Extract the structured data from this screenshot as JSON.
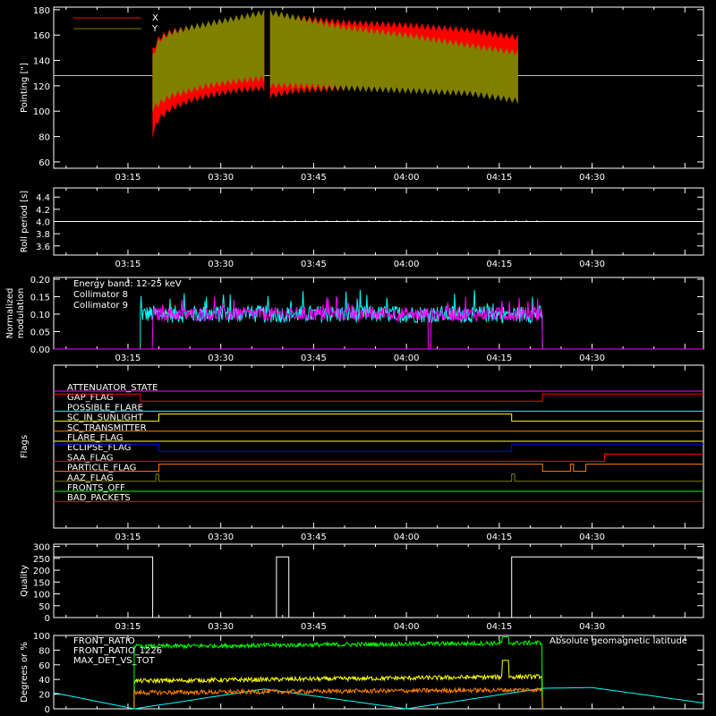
{
  "time_axis": {
    "tick_labels": [
      "03:15",
      "03:30",
      "03:45",
      "04:00",
      "04:15",
      "04:30"
    ],
    "tick_minutes": [
      195,
      210,
      225,
      240,
      255,
      270
    ],
    "range_minutes": [
      183,
      288
    ]
  },
  "colors": {
    "white": "#ffffff",
    "red": "#ff0000",
    "olive": "#808000",
    "cyan": "#00ffff",
    "magenta": "#ff00ff",
    "yellow": "#ffff00",
    "green": "#00ff00",
    "orange": "#ff8000",
    "blue": "#0000ff",
    "gray": "#c0c0c0"
  },
  "chart_data": [
    {
      "type": "area",
      "ylabel": "Pointing [\"]",
      "ylim": [
        55,
        182
      ],
      "yticks": [
        60,
        80,
        100,
        120,
        140,
        160,
        180
      ],
      "reference_line": 128,
      "legend": [
        "X",
        "Y"
      ],
      "series": [
        {
          "name": "X",
          "color": "#ff0000",
          "segments": [
            {
              "start": 199,
              "end": 217,
              "x": [
                199,
                200,
                202,
                205,
                208,
                212,
                217
              ],
              "upper": [
                150,
                160,
                165,
                168,
                170,
                172,
                174
              ],
              "lower": [
                80,
                92,
                100,
                106,
                110,
                114,
                116
              ]
            },
            {
              "start": 218,
              "end": 258,
              "x": [
                218,
                222,
                230,
                240,
                250,
                258
              ],
              "upper": [
                178,
                176,
                172,
                170,
                166,
                160
              ],
              "lower": [
                110,
                114,
                116,
                115,
                112,
                108
              ]
            }
          ]
        },
        {
          "name": "Y",
          "color": "#808000",
          "segments": [
            {
              "start": 199,
              "end": 217,
              "x": [
                199,
                200,
                202,
                205,
                208,
                212,
                217
              ],
              "upper": [
                145,
                158,
                164,
                168,
                171,
                175,
                180
              ],
              "lower": [
                100,
                104,
                110,
                114,
                118,
                121,
                124
              ]
            },
            {
              "start": 218,
              "end": 258,
              "x": [
                218,
                222,
                230,
                240,
                250,
                258
              ],
              "upper": [
                180,
                176,
                168,
                162,
                154,
                148
              ],
              "lower": [
                118,
                118,
                116,
                114,
                112,
                106
              ]
            }
          ]
        }
      ]
    },
    {
      "type": "line",
      "ylabel": "Roll period [s]",
      "ylim": [
        3.45,
        4.55
      ],
      "yticks": [
        3.6,
        3.8,
        4.0,
        4.2,
        4.4
      ],
      "yticklabels": [
        "3.6",
        "3.8",
        "4.0",
        "4.2",
        "4.4"
      ],
      "series": [
        {
          "name": "roll",
          "color": "#ffffff",
          "x": [
            183,
            288
          ],
          "y": [
            4.0,
            4.0
          ]
        }
      ]
    },
    {
      "type": "line",
      "ylabel": "Normalized modulation",
      "ylim": [
        0,
        0.205
      ],
      "yticks": [
        0,
        0.05,
        0.1,
        0.15,
        0.2
      ],
      "yticklabels": [
        "0.00",
        "0.05",
        "0.10",
        "0.15",
        "0.20"
      ],
      "annotations": [
        "Energy band: 12-25 keV",
        "Collimator 8",
        "Collimator 9"
      ],
      "series": [
        {
          "name": "Collimator 8",
          "color": "#00ffff",
          "start": 197,
          "end": 262,
          "mean": 0.1,
          "spread": 0.025
        },
        {
          "name": "Collimator 9",
          "color": "#ff00ff",
          "start": 197,
          "end": 262,
          "mean": 0.1,
          "spread": 0.02,
          "dropouts": [
            [
              197,
              199
            ],
            [
              243.5,
              244
            ]
          ]
        }
      ]
    },
    {
      "type": "table",
      "ylabel": "Flags",
      "flags": [
        {
          "label": "ATTENUATOR_STATE",
          "color": "#ff00ff",
          "steps": [
            [
              183,
              0
            ]
          ]
        },
        {
          "label": "GAP_FLAG",
          "color": "#ff0000",
          "steps": [
            [
              183,
              1
            ],
            [
              197,
              0
            ],
            [
              262,
              1
            ]
          ]
        },
        {
          "label": "POSSIBLE_FLARE",
          "color": "#00ffff",
          "steps": [
            [
              183,
              0
            ]
          ]
        },
        {
          "label": "SC_IN_SUNLIGHT",
          "color": "#ffff00",
          "steps": [
            [
              183,
              0
            ],
            [
              200,
              1
            ],
            [
              257,
              0
            ]
          ]
        },
        {
          "label": "SC_TRANSMITTER",
          "color": "#ff8000",
          "steps": [
            [
              183,
              0
            ]
          ]
        },
        {
          "label": "FLARE_FLAG",
          "color": "#ffff00",
          "steps": [
            [
              183,
              0
            ]
          ]
        },
        {
          "label": "ECLIPSE_FLAG",
          "color": "#0000ff",
          "steps": [
            [
              183,
              1
            ],
            [
              200,
              0
            ],
            [
              257,
              1
            ]
          ]
        },
        {
          "label": "SAA_FLAG",
          "color": "#ff0000",
          "steps": [
            [
              183,
              0
            ],
            [
              272,
              1
            ]
          ]
        },
        {
          "label": "PARTICLE_FLAG",
          "color": "#ff8000",
          "steps": [
            [
              183,
              0
            ],
            [
              200,
              1
            ],
            [
              262,
              0
            ],
            [
              266.5,
              1
            ],
            [
              267,
              0
            ],
            [
              269,
              1
            ]
          ]
        },
        {
          "label": "AAZ_FLAG",
          "color": "#808000",
          "steps": [
            [
              183,
              0
            ],
            [
              199.5,
              1
            ],
            [
              200,
              0
            ],
            [
              257,
              1
            ],
            [
              257.5,
              0
            ]
          ]
        },
        {
          "label": "FRONTS_OFF",
          "color": "#00ff00",
          "steps": [
            [
              183,
              0
            ]
          ]
        },
        {
          "label": "BAD_PACKETS",
          "color": "#ff0000",
          "steps": [
            [
              183,
              0
            ]
          ]
        }
      ]
    },
    {
      "type": "line",
      "ylabel": "Quality",
      "ylim": [
        0,
        310
      ],
      "yticks": [
        0,
        50,
        100,
        150,
        200,
        250,
        300
      ],
      "series": [
        {
          "name": "quality",
          "color": "#ffffff",
          "x": [
            183,
            199,
            199,
            219,
            219,
            221,
            221,
            257,
            257,
            288
          ],
          "y": [
            256,
            256,
            0,
            0,
            256,
            256,
            0,
            0,
            256,
            256
          ]
        }
      ]
    },
    {
      "type": "line",
      "ylabel": "Degrees or %",
      "ylim": [
        0,
        100
      ],
      "yticks": [
        0,
        20,
        40,
        60,
        80,
        100
      ],
      "legend": [
        "FRONT_RATIO",
        "FRONT_RATIO_1226",
        "MAX_DET_VS_TOT",
        "Absolute geomagnetic latitude"
      ],
      "series": [
        {
          "name": "FRONT_RATIO",
          "color": "#ffff00",
          "start": 196,
          "end": 262,
          "from": 38,
          "to": 44
        },
        {
          "name": "FRONT_RATIO_1226",
          "color": "#00ff00",
          "start": 196,
          "end": 262,
          "from": 85,
          "to": 90
        },
        {
          "name": "MAX_DET_VS_TOT",
          "color": "#ff8000",
          "start": 196,
          "end": 262,
          "from": 22,
          "to": 26
        },
        {
          "name": "Absolute geomagnetic latitude",
          "color": "#00ffff",
          "x": [
            183,
            196,
            217,
            240,
            262,
            270,
            288
          ],
          "y": [
            22,
            0,
            27,
            0,
            28,
            29,
            8
          ]
        }
      ]
    }
  ]
}
